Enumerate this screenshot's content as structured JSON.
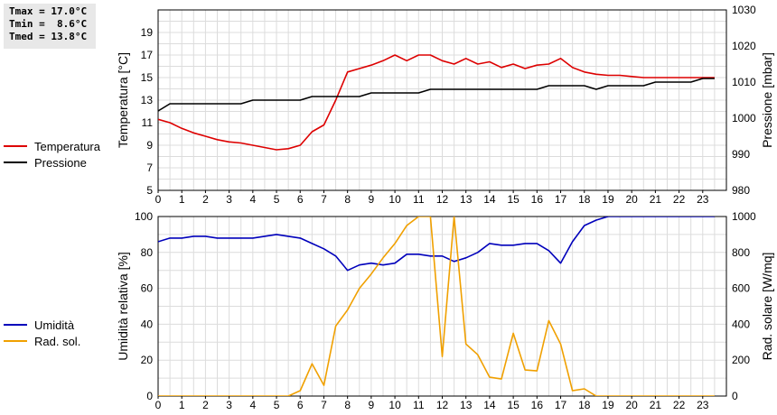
{
  "stats": {
    "tmax": "Tmax = 17.0°C",
    "tmin": "Tmin =  8.6°C",
    "tmed": "Tmed = 13.8°C"
  },
  "legend_top": [
    {
      "label": "Temperatura",
      "color": "#dd0000"
    },
    {
      "label": "Pressione",
      "color": "#000000"
    }
  ],
  "legend_bottom": [
    {
      "label": "Umidità",
      "color": "#0000bb"
    },
    {
      "label": "Rad. sol.",
      "color": "#f0a000"
    }
  ],
  "chart_data": [
    {
      "type": "line",
      "xlim": [
        0,
        24
      ],
      "xticks": [
        0,
        1,
        2,
        3,
        4,
        5,
        6,
        7,
        8,
        9,
        10,
        11,
        12,
        13,
        14,
        15,
        16,
        17,
        18,
        19,
        20,
        21,
        22,
        23
      ],
      "ylabel": "Temperatura [°C]",
      "ylim": [
        5,
        21
      ],
      "yticks": [
        5,
        7,
        9,
        11,
        13,
        15,
        17,
        19
      ],
      "y2label": "Pressione [mbar]",
      "y2lim": [
        980,
        1030
      ],
      "y2ticks": [
        980,
        990,
        1000,
        1010,
        1020,
        1030
      ],
      "grid": true,
      "series": [
        {
          "name": "Temperatura",
          "axis": "left",
          "color": "#dd0000",
          "x": [
            0,
            0.5,
            1,
            1.5,
            2,
            2.5,
            3,
            3.5,
            4,
            4.5,
            5,
            5.5,
            6,
            6.5,
            7,
            7.5,
            8,
            8.5,
            9,
            9.5,
            10,
            10.5,
            11,
            11.5,
            12,
            12.5,
            13,
            13.5,
            14,
            14.5,
            15,
            15.5,
            16,
            16.5,
            17,
            17.5,
            18,
            18.5,
            19,
            19.5,
            20,
            20.5,
            21,
            21.5,
            22,
            22.5,
            23,
            23.5
          ],
          "y": [
            11.3,
            11.0,
            10.5,
            10.1,
            9.8,
            9.5,
            9.3,
            9.2,
            9.0,
            8.8,
            8.6,
            8.7,
            9.0,
            10.2,
            10.8,
            13.0,
            15.5,
            15.8,
            16.1,
            16.5,
            17.0,
            16.5,
            17.0,
            17.0,
            16.5,
            16.2,
            16.7,
            16.2,
            16.4,
            15.9,
            16.2,
            15.8,
            16.1,
            16.2,
            16.7,
            15.9,
            15.5,
            15.3,
            15.2,
            15.2,
            15.1,
            15.0,
            15.0,
            15.0,
            15.0,
            15.0,
            15.0,
            15.0
          ]
        },
        {
          "name": "Pressione",
          "axis": "right",
          "color": "#000000",
          "x": [
            0,
            0.5,
            1,
            1.5,
            2,
            2.5,
            3,
            3.5,
            4,
            4.5,
            5,
            5.5,
            6,
            6.5,
            7,
            7.5,
            8,
            8.5,
            9,
            9.5,
            10,
            10.5,
            11,
            11.5,
            12,
            12.5,
            13,
            13.5,
            14,
            14.5,
            15,
            15.5,
            16,
            16.5,
            17,
            17.5,
            18,
            18.5,
            19,
            19.5,
            20,
            20.5,
            21,
            21.5,
            22,
            22.5,
            23,
            23.5
          ],
          "y": [
            1002,
            1004,
            1004,
            1004,
            1004,
            1004,
            1004,
            1004,
            1005,
            1005,
            1005,
            1005,
            1005,
            1006,
            1006,
            1006,
            1006,
            1006,
            1007,
            1007,
            1007,
            1007,
            1007,
            1008,
            1008,
            1008,
            1008,
            1008,
            1008,
            1008,
            1008,
            1008,
            1008,
            1009,
            1009,
            1009,
            1009,
            1008,
            1009,
            1009,
            1009,
            1009,
            1010,
            1010,
            1010,
            1010,
            1011,
            1011
          ]
        }
      ]
    },
    {
      "type": "line",
      "xlim": [
        0,
        24
      ],
      "xticks": [
        0,
        1,
        2,
        3,
        4,
        5,
        6,
        7,
        8,
        9,
        10,
        11,
        12,
        13,
        14,
        15,
        16,
        17,
        18,
        19,
        20,
        21,
        22,
        23
      ],
      "ylabel": "Umidità relativa [%]",
      "ylim": [
        0,
        100
      ],
      "yticks": [
        0,
        20,
        40,
        60,
        80,
        100
      ],
      "y2label": "Rad. solare [W/mq]",
      "y2lim": [
        0,
        1000
      ],
      "y2ticks": [
        0,
        200,
        400,
        600,
        800,
        1000
      ],
      "grid": true,
      "series": [
        {
          "name": "Umidità",
          "axis": "left",
          "color": "#0000bb",
          "x": [
            0,
            0.5,
            1,
            1.5,
            2,
            2.5,
            3,
            3.5,
            4,
            4.5,
            5,
            5.5,
            6,
            6.5,
            7,
            7.5,
            8,
            8.5,
            9,
            9.5,
            10,
            10.5,
            11,
            11.5,
            12,
            12.5,
            13,
            13.5,
            14,
            14.5,
            15,
            15.5,
            16,
            16.5,
            17,
            17.5,
            18,
            18.5,
            19,
            19.5,
            20,
            20.5,
            21,
            21.5,
            22,
            22.5,
            23,
            23.5
          ],
          "y": [
            86,
            88,
            88,
            89,
            89,
            88,
            88,
            88,
            88,
            89,
            90,
            89,
            88,
            85,
            82,
            78,
            70,
            73,
            74,
            73,
            74,
            79,
            79,
            78,
            78,
            75,
            77,
            80,
            85,
            84,
            84,
            85,
            85,
            81,
            74,
            86,
            95,
            98,
            100,
            100,
            100,
            100,
            100,
            100,
            100,
            100,
            100,
            100
          ]
        },
        {
          "name": "Rad. sol.",
          "axis": "right",
          "color": "#f0a000",
          "x": [
            0,
            0.5,
            1,
            1.5,
            2,
            2.5,
            3,
            3.5,
            4,
            4.5,
            5,
            5.5,
            6,
            6.5,
            7,
            7.5,
            8,
            8.5,
            9,
            9.5,
            10,
            10.5,
            11,
            11.5,
            12,
            12.5,
            13,
            13.5,
            14,
            14.5,
            15,
            15.5,
            16,
            16.5,
            17,
            17.5,
            18,
            18.5,
            19,
            19.5,
            20,
            20.5,
            21,
            21.5,
            22,
            22.5,
            23,
            23.5
          ],
          "y": [
            0,
            0,
            0,
            0,
            0,
            0,
            0,
            0,
            0,
            0,
            0,
            0,
            30,
            180,
            60,
            390,
            480,
            600,
            680,
            770,
            850,
            950,
            1000,
            1000,
            220,
            1000,
            290,
            230,
            105,
            95,
            350,
            145,
            140,
            420,
            290,
            30,
            40,
            0,
            0,
            0,
            0,
            0,
            0,
            0,
            0,
            0,
            0,
            0
          ]
        }
      ]
    }
  ]
}
